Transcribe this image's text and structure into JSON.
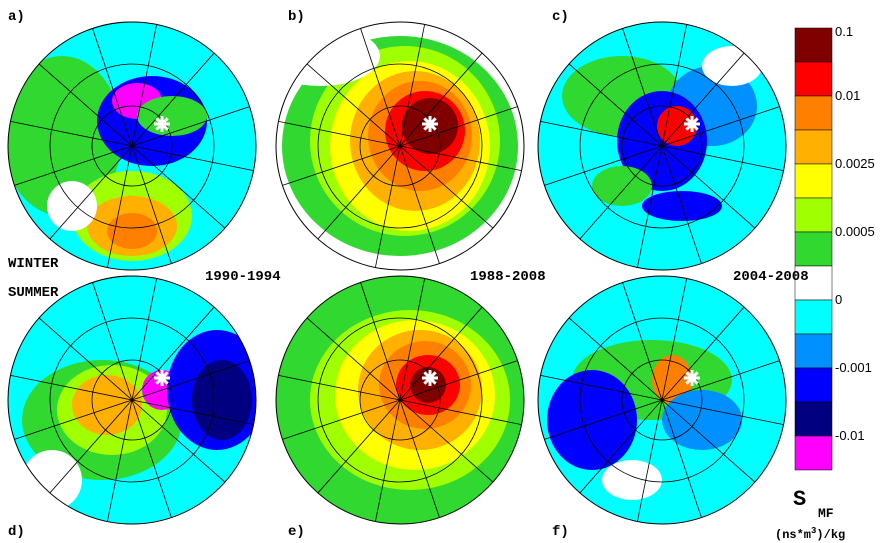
{
  "panels": [
    {
      "label": "a)"
    },
    {
      "label": "b)"
    },
    {
      "label": "c)"
    },
    {
      "label": "d)"
    },
    {
      "label": "e)"
    },
    {
      "label": "f)"
    }
  ],
  "seasons": {
    "winter": "WINTER",
    "summer": "SUMMER"
  },
  "periods": [
    "1990-1994",
    "1988-2008",
    "2004-2008"
  ],
  "colorbar": {
    "colors": [
      "#800000",
      "#ff0000",
      "#ff8000",
      "#ffb000",
      "#ffff00",
      "#a0ff00",
      "#30d830",
      "#ffffff",
      "#00ffff",
      "#0090ff",
      "#0000ff",
      "#000080",
      "#ff00ff"
    ],
    "ticks": [
      0.1,
      0.01,
      0.0025,
      0.0005,
      0,
      -0.001,
      -0.01
    ],
    "symbol": "S",
    "subscript": "MF",
    "units": {
      "before": "(ns*m",
      "superscript": "3",
      "after": ")/kg"
    }
  }
}
